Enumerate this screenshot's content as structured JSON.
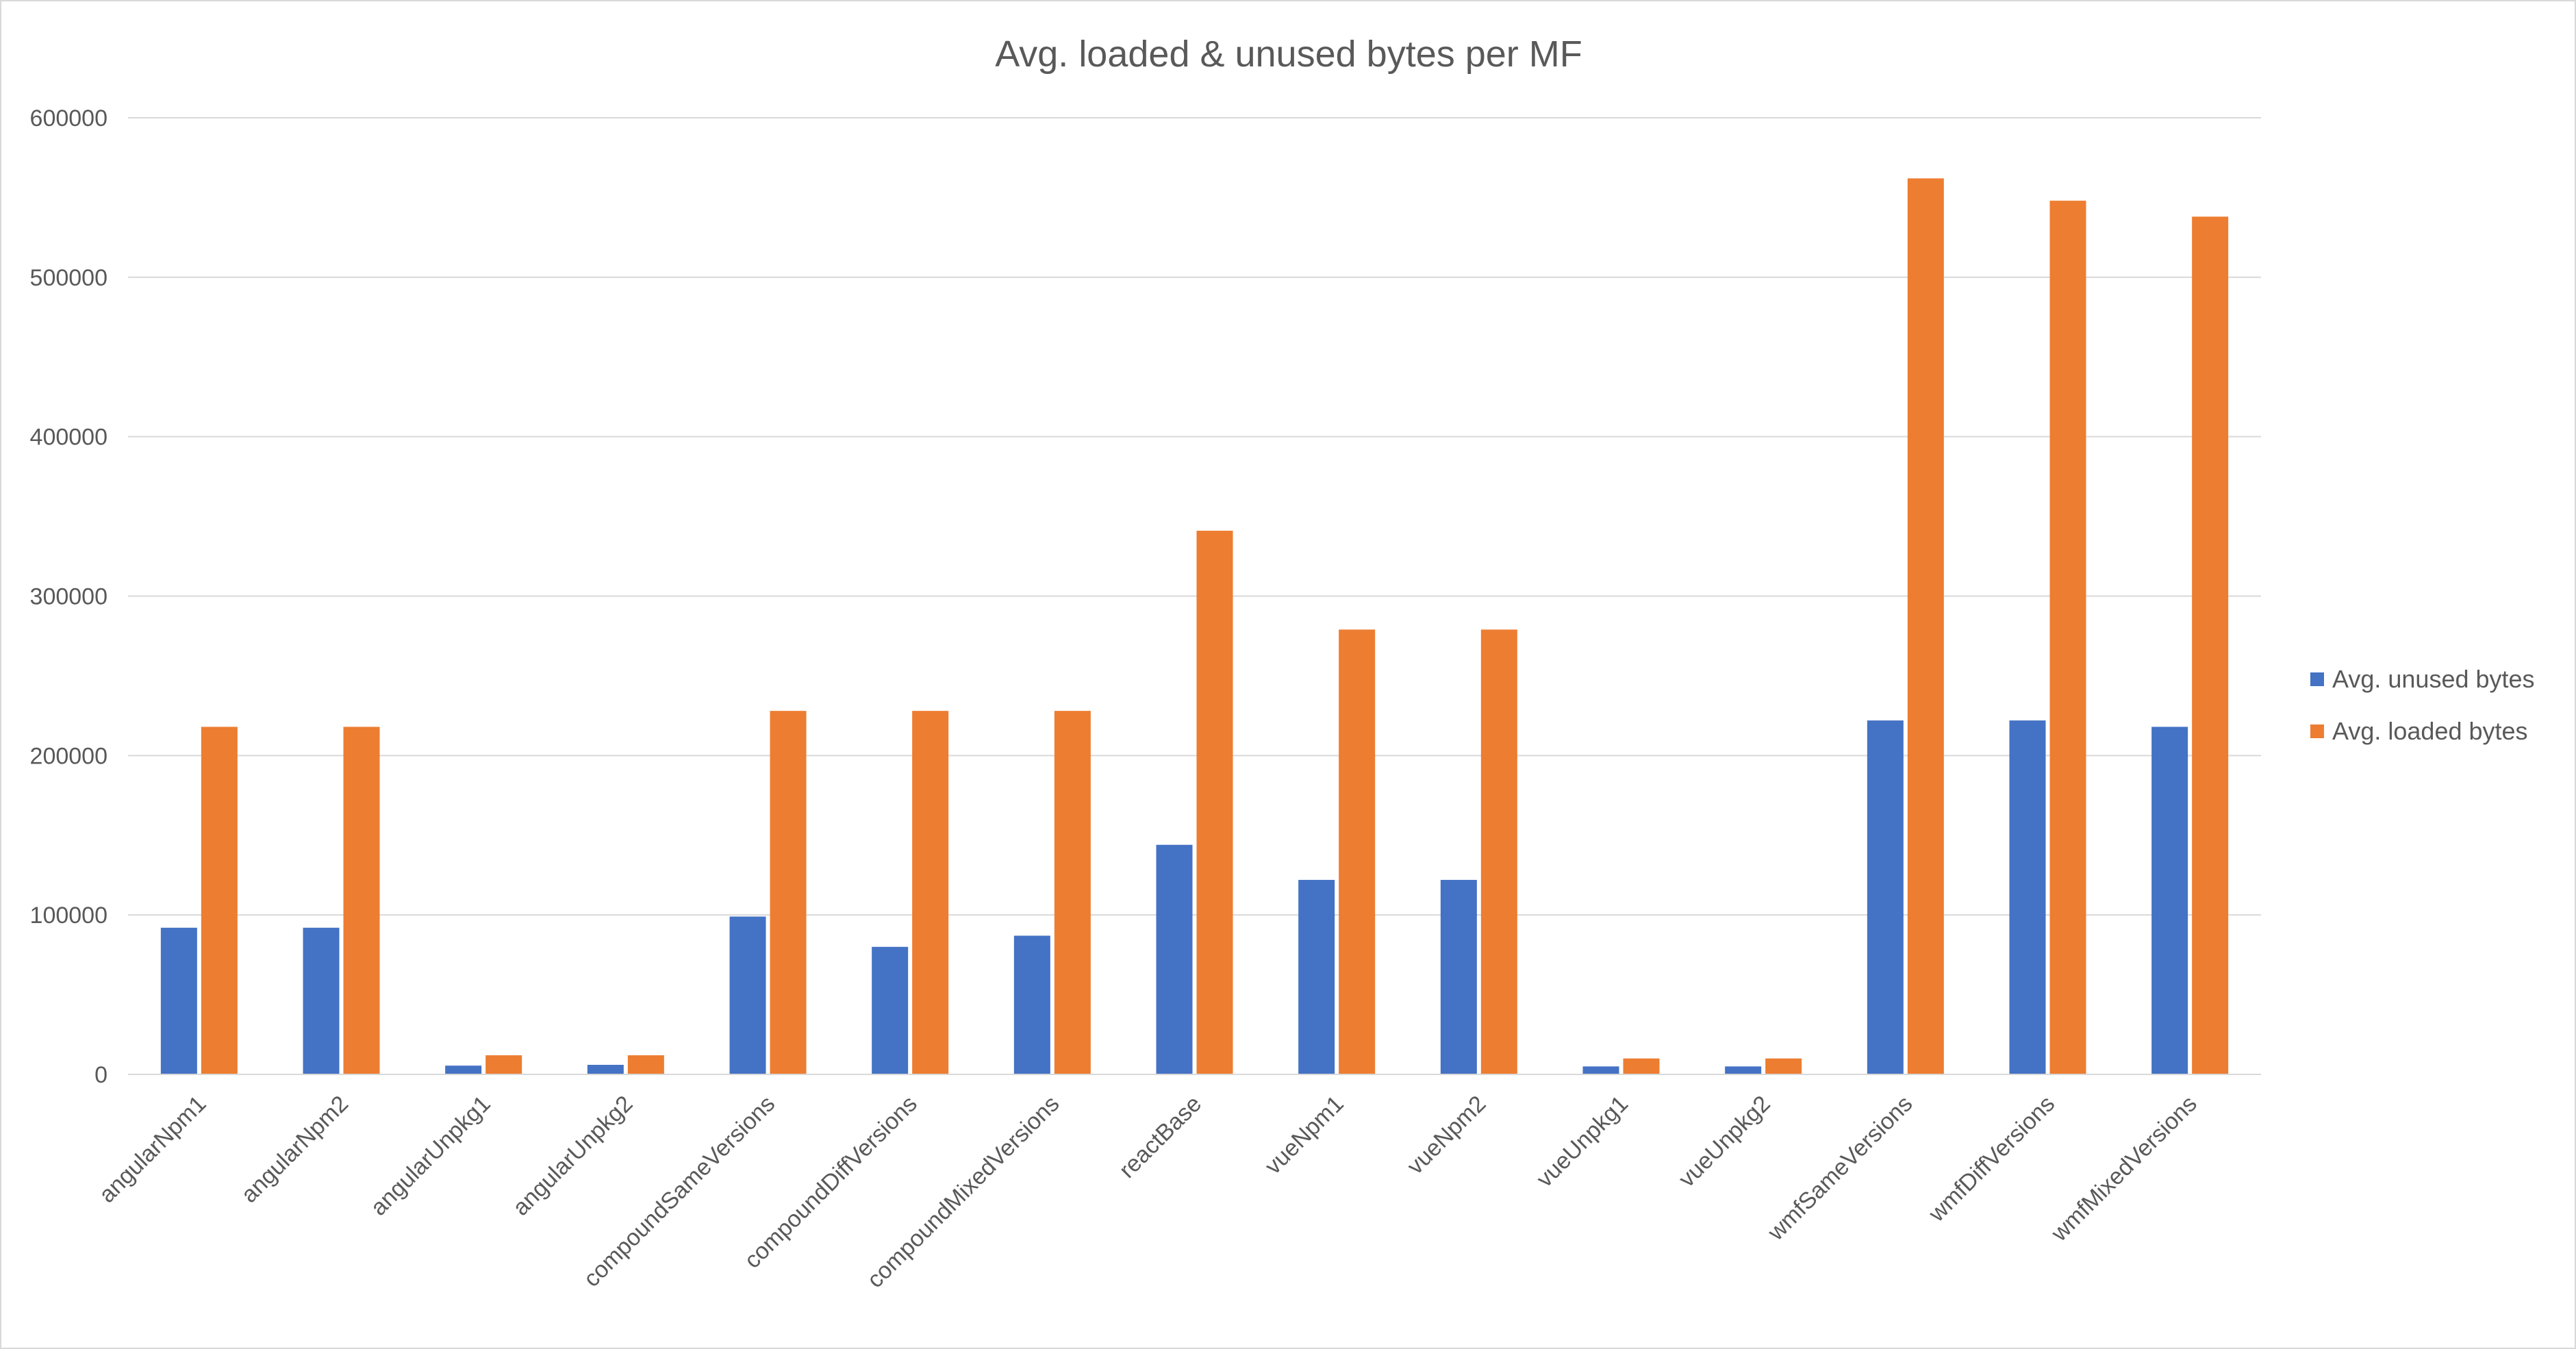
{
  "chart_data": {
    "type": "bar",
    "title": "Avg. loaded & unused bytes per MF",
    "xlabel": "",
    "ylabel": "",
    "ylim": [
      0,
      600000
    ],
    "yticks": [
      "0",
      "100000",
      "200000",
      "300000",
      "400000",
      "500000",
      "600000"
    ],
    "grid": true,
    "legend_position": "right",
    "categories": [
      "angularNpm1",
      "angularNpm2",
      "angularUnpkg1",
      "angularUnpkg2",
      "compoundSameVersions",
      "compoundDiffVersions",
      "compoundMixedVersions",
      "reactBase",
      "vueNpm1",
      "vueNpm2",
      "vueUnpkg1",
      "vueUnpkg2",
      "wmfSameVersions",
      "wmfDiffVersions",
      "wmfMixedVersions"
    ],
    "series": [
      {
        "name": "Avg. unused bytes",
        "color": "#4472c4",
        "values": [
          92000,
          92000,
          5500,
          6000,
          99000,
          80000,
          87000,
          144000,
          122000,
          122000,
          5000,
          5000,
          222000,
          222000,
          218000
        ]
      },
      {
        "name": "Avg. loaded bytes",
        "color": "#ed7d31",
        "values": [
          218000,
          218000,
          12000,
          12000,
          228000,
          228000,
          228000,
          341000,
          279000,
          279000,
          10000,
          10000,
          562000,
          548000,
          538000
        ]
      }
    ]
  }
}
